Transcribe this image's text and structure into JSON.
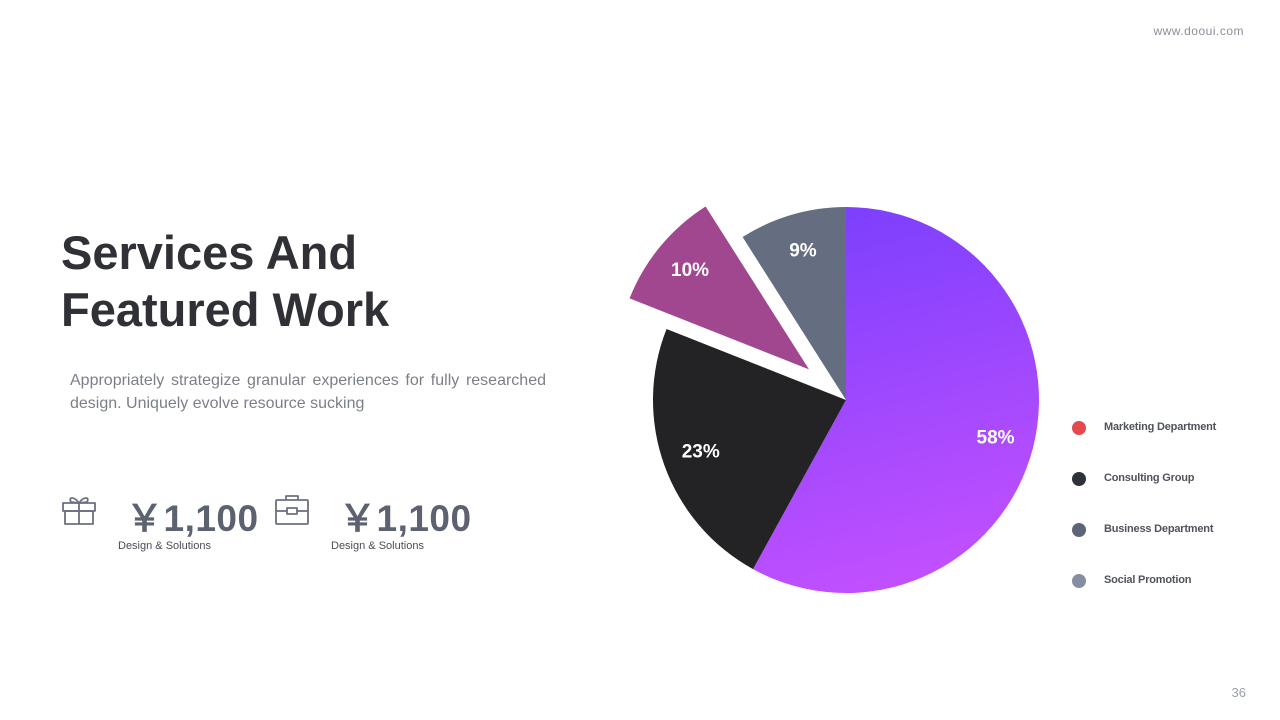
{
  "site_url": "www.dooui.com",
  "page_number": "36",
  "title_line1": "Services And",
  "title_line2": "Featured Work",
  "description": "Appropriately strategize granular experiences for fully researched design. Uniquely evolve resource sucking",
  "stats": [
    {
      "icon": "gift-icon",
      "value": "￥1,100",
      "caption": "Design & Solutions"
    },
    {
      "icon": "briefcase-icon",
      "value": "￥1,100",
      "caption": "Design & Solutions"
    }
  ],
  "chart_data": {
    "type": "pie",
    "slices": [
      {
        "label": "58%",
        "value": 58,
        "color": "#9b46ff",
        "gradient": [
          "#7b3ffd",
          "#c150ff"
        ]
      },
      {
        "label": "23%",
        "value": 23,
        "color": "#232326"
      },
      {
        "label": "10%",
        "value": 10,
        "color": "#a1478f",
        "exploded": true
      },
      {
        "label": "9%",
        "value": 9,
        "color": "#656d80"
      }
    ],
    "legend": [
      {
        "label": "Marketing Department",
        "color": "#e5484d"
      },
      {
        "label": "Consulting Group",
        "color": "#2f323a"
      },
      {
        "label": "Business Department",
        "color": "#5d6578"
      },
      {
        "label": "Social Promotion",
        "color": "#858ea3"
      }
    ]
  }
}
